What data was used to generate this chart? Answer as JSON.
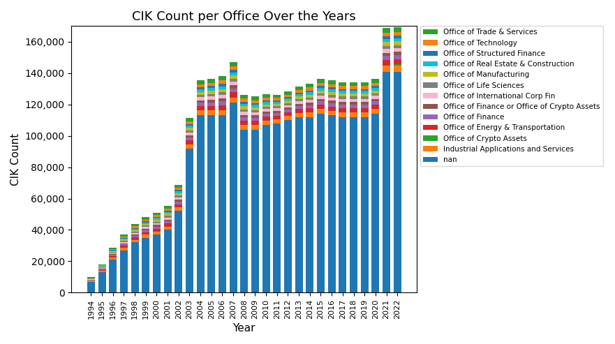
{
  "title": "CIK Count per Office Over the Years",
  "xlabel": "Year",
  "ylabel": "CIK Count",
  "years": [
    1994,
    1995,
    1996,
    1997,
    1998,
    1999,
    2000,
    2001,
    2002,
    2003,
    2004,
    2005,
    2006,
    2007,
    2008,
    2009,
    2010,
    2011,
    2012,
    2013,
    2014,
    2015,
    2016,
    2017,
    2018,
    2019,
    2020,
    2021,
    2022
  ],
  "legend_order": [
    "Office of Trade & Services",
    "Office of Technology",
    "Office of Structured Finance",
    "Office of Real Estate & Construction",
    "Office of Manufacturing",
    "Office of Life Sciences",
    "Office of International Corp Fin",
    "Office of Finance or Office of Crypto Assets",
    "Office of Finance",
    "Office of Energy & Transportation",
    "Office of Crypto Assets",
    "Industrial Applications and Services",
    "nan"
  ],
  "stack_order": [
    "nan",
    "Industrial Applications and Services",
    "Office of Crypto Assets",
    "Office of Energy & Transportation",
    "Office of Finance",
    "Office of Finance or Office of Crypto Assets",
    "Office of International Corp Fin",
    "Office of Life Sciences",
    "Office of Manufacturing",
    "Office of Real Estate & Construction",
    "Office of Structured Finance",
    "Office of Technology",
    "Office of Trade & Services"
  ],
  "series": {
    "nan": [
      7000,
      13000,
      21000,
      27000,
      32000,
      35000,
      37000,
      40000,
      52000,
      92000,
      113000,
      113000,
      113000,
      121000,
      104000,
      104000,
      107000,
      108000,
      110000,
      112000,
      112000,
      114000,
      113000,
      112000,
      112000,
      112000,
      114000,
      141000,
      141000
    ],
    "Industrial Applications and Services": [
      500,
      800,
      1200,
      1500,
      1700,
      1900,
      2000,
      2100,
      2300,
      2700,
      3100,
      3200,
      3400,
      3500,
      3000,
      2900,
      2700,
      2600,
      2600,
      2700,
      2900,
      3000,
      3000,
      3000,
      3000,
      3000,
      3000,
      3700,
      3700
    ],
    "Office of Crypto Assets": [
      0,
      0,
      0,
      0,
      0,
      0,
      0,
      0,
      0,
      0,
      0,
      0,
      0,
      0,
      0,
      0,
      0,
      0,
      0,
      0,
      0,
      0,
      0,
      0,
      0,
      0,
      0,
      300,
      800
    ],
    "Office of Energy & Transportation": [
      400,
      700,
      1000,
      1300,
      1500,
      1700,
      1800,
      1900,
      2100,
      2400,
      2800,
      2900,
      3100,
      3200,
      2700,
      2600,
      2400,
      2300,
      2300,
      2400,
      2600,
      2700,
      2700,
      2700,
      2700,
      2700,
      2700,
      3300,
      3300
    ],
    "Office of Finance": [
      300,
      500,
      800,
      1000,
      1200,
      1300,
      1400,
      1500,
      1700,
      1900,
      2200,
      2300,
      2500,
      2600,
      2200,
      2100,
      1900,
      1800,
      1800,
      1900,
      2100,
      2200,
      2200,
      2200,
      2200,
      2200,
      2200,
      2700,
      2700
    ],
    "Office of Finance or Office of Crypto Assets": [
      150,
      300,
      450,
      600,
      700,
      800,
      900,
      1000,
      1100,
      1300,
      1500,
      1600,
      1700,
      1800,
      1500,
      1400,
      1300,
      1200,
      1200,
      1300,
      1500,
      1600,
      1600,
      1600,
      1600,
      1600,
      1600,
      2000,
      2000
    ],
    "Office of International Corp Fin": [
      250,
      450,
      700,
      900,
      1050,
      1150,
      1250,
      1350,
      1500,
      1700,
      1950,
      2050,
      2200,
      2300,
      1950,
      1850,
      1700,
      1600,
      1600,
      1700,
      1850,
      1950,
      1950,
      1950,
      1950,
      1950,
      1950,
      2400,
      2400
    ],
    "Office of Life Sciences": [
      150,
      300,
      500,
      650,
      750,
      850,
      950,
      1050,
      1150,
      1350,
      1550,
      1650,
      1750,
      1850,
      1550,
      1450,
      1350,
      1250,
      1250,
      1350,
      1450,
      1550,
      1550,
      1550,
      1550,
      1550,
      1550,
      1900,
      1900
    ],
    "Office of Manufacturing": [
      250,
      450,
      700,
      900,
      1050,
      1150,
      1250,
      1350,
      1500,
      1700,
      1950,
      2050,
      2200,
      2300,
      1950,
      1850,
      1700,
      1600,
      1600,
      1700,
      1850,
      1950,
      1950,
      1950,
      1950,
      1950,
      1950,
      2400,
      2400
    ],
    "Office of Real Estate & Construction": [
      200,
      350,
      550,
      700,
      800,
      900,
      1000,
      1100,
      1200,
      1400,
      1600,
      1700,
      1800,
      1900,
      1600,
      1500,
      1400,
      1300,
      1300,
      1400,
      1500,
      1600,
      1600,
      1600,
      1600,
      1600,
      1600,
      2000,
      2000
    ],
    "Office of Structured Finance": [
      100,
      200,
      350,
      450,
      500,
      600,
      700,
      800,
      900,
      1050,
      1200,
      1300,
      1400,
      1500,
      1250,
      1150,
      1100,
      1000,
      1000,
      1100,
      1200,
      1300,
      1300,
      1300,
      1300,
      1300,
      1300,
      1600,
      1600
    ],
    "Office of Technology": [
      250,
      450,
      700,
      900,
      1050,
      1150,
      1250,
      1350,
      1500,
      1700,
      1950,
      2050,
      2200,
      2300,
      1950,
      1850,
      1700,
      1600,
      1600,
      1700,
      1850,
      1950,
      1950,
      1950,
      1950,
      1950,
      1950,
      2400,
      2400
    ],
    "Office of Trade & Services": [
      350,
      600,
      900,
      1150,
      1350,
      1500,
      1600,
      1700,
      1900,
      2150,
      2450,
      2600,
      2750,
      2900,
      2450,
      2350,
      2150,
      2050,
      2050,
      2150,
      2350,
      2450,
      2450,
      2450,
      2450,
      2450,
      2450,
      3000,
      3000
    ]
  },
  "colors": {
    "Office of Trade & Services": "#2ca02c",
    "Office of Technology": "#ff7f0e",
    "Office of Structured Finance": "#1f77b4",
    "Office of Real Estate & Construction": "#17becf",
    "Office of Manufacturing": "#bcbd22",
    "Office of Life Sciences": "#7f7f7f",
    "Office of International Corp Fin": "#f7b6d2",
    "Office of Finance or Office of Crypto Assets": "#8c564b",
    "Office of Finance": "#9467bd",
    "Office of Energy & Transportation": "#d62728",
    "Office of Crypto Assets": "#27a52a",
    "Industrial Applications and Services": "#ff7f0e",
    "nan": "#1f77b4"
  }
}
